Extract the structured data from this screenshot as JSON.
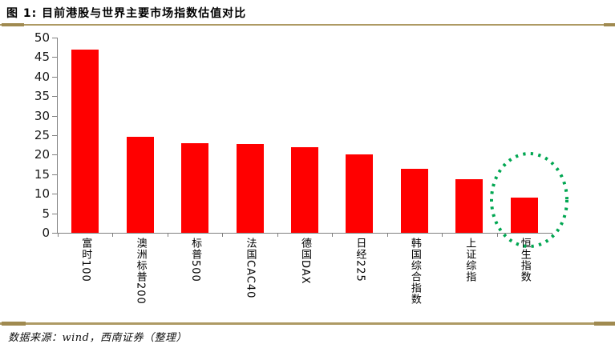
{
  "header": {
    "title": "图 1:  目前港股与世界主要市场指数估值对比"
  },
  "footer": {
    "source": "数据来源：wind，西南证券（整理）"
  },
  "colors": {
    "bar": "#ff0000",
    "divider": "#ae9a64",
    "axis": "#808080",
    "highlight": "#00a651"
  },
  "chart_data": {
    "type": "bar",
    "title": "目前港股与世界主要市场指数估值对比",
    "categories": [
      "富时100",
      "澳洲标普200",
      "标普500",
      "法国CAC40",
      "德国DAX",
      "日经225",
      "韩国综合指数",
      "上证综指",
      "恒生指数"
    ],
    "values": [
      47,
      24.5,
      23,
      22.7,
      22,
      20,
      16.4,
      13.8,
      9
    ],
    "xlabel": "",
    "ylabel": "",
    "ylim": [
      0,
      50
    ],
    "ytick_step": 5,
    "grid": false,
    "legend": "none",
    "bar_color": "#ff0000",
    "annotation": {
      "type": "dotted-ellipse",
      "target": "恒生指数",
      "color": "#00a651"
    }
  }
}
